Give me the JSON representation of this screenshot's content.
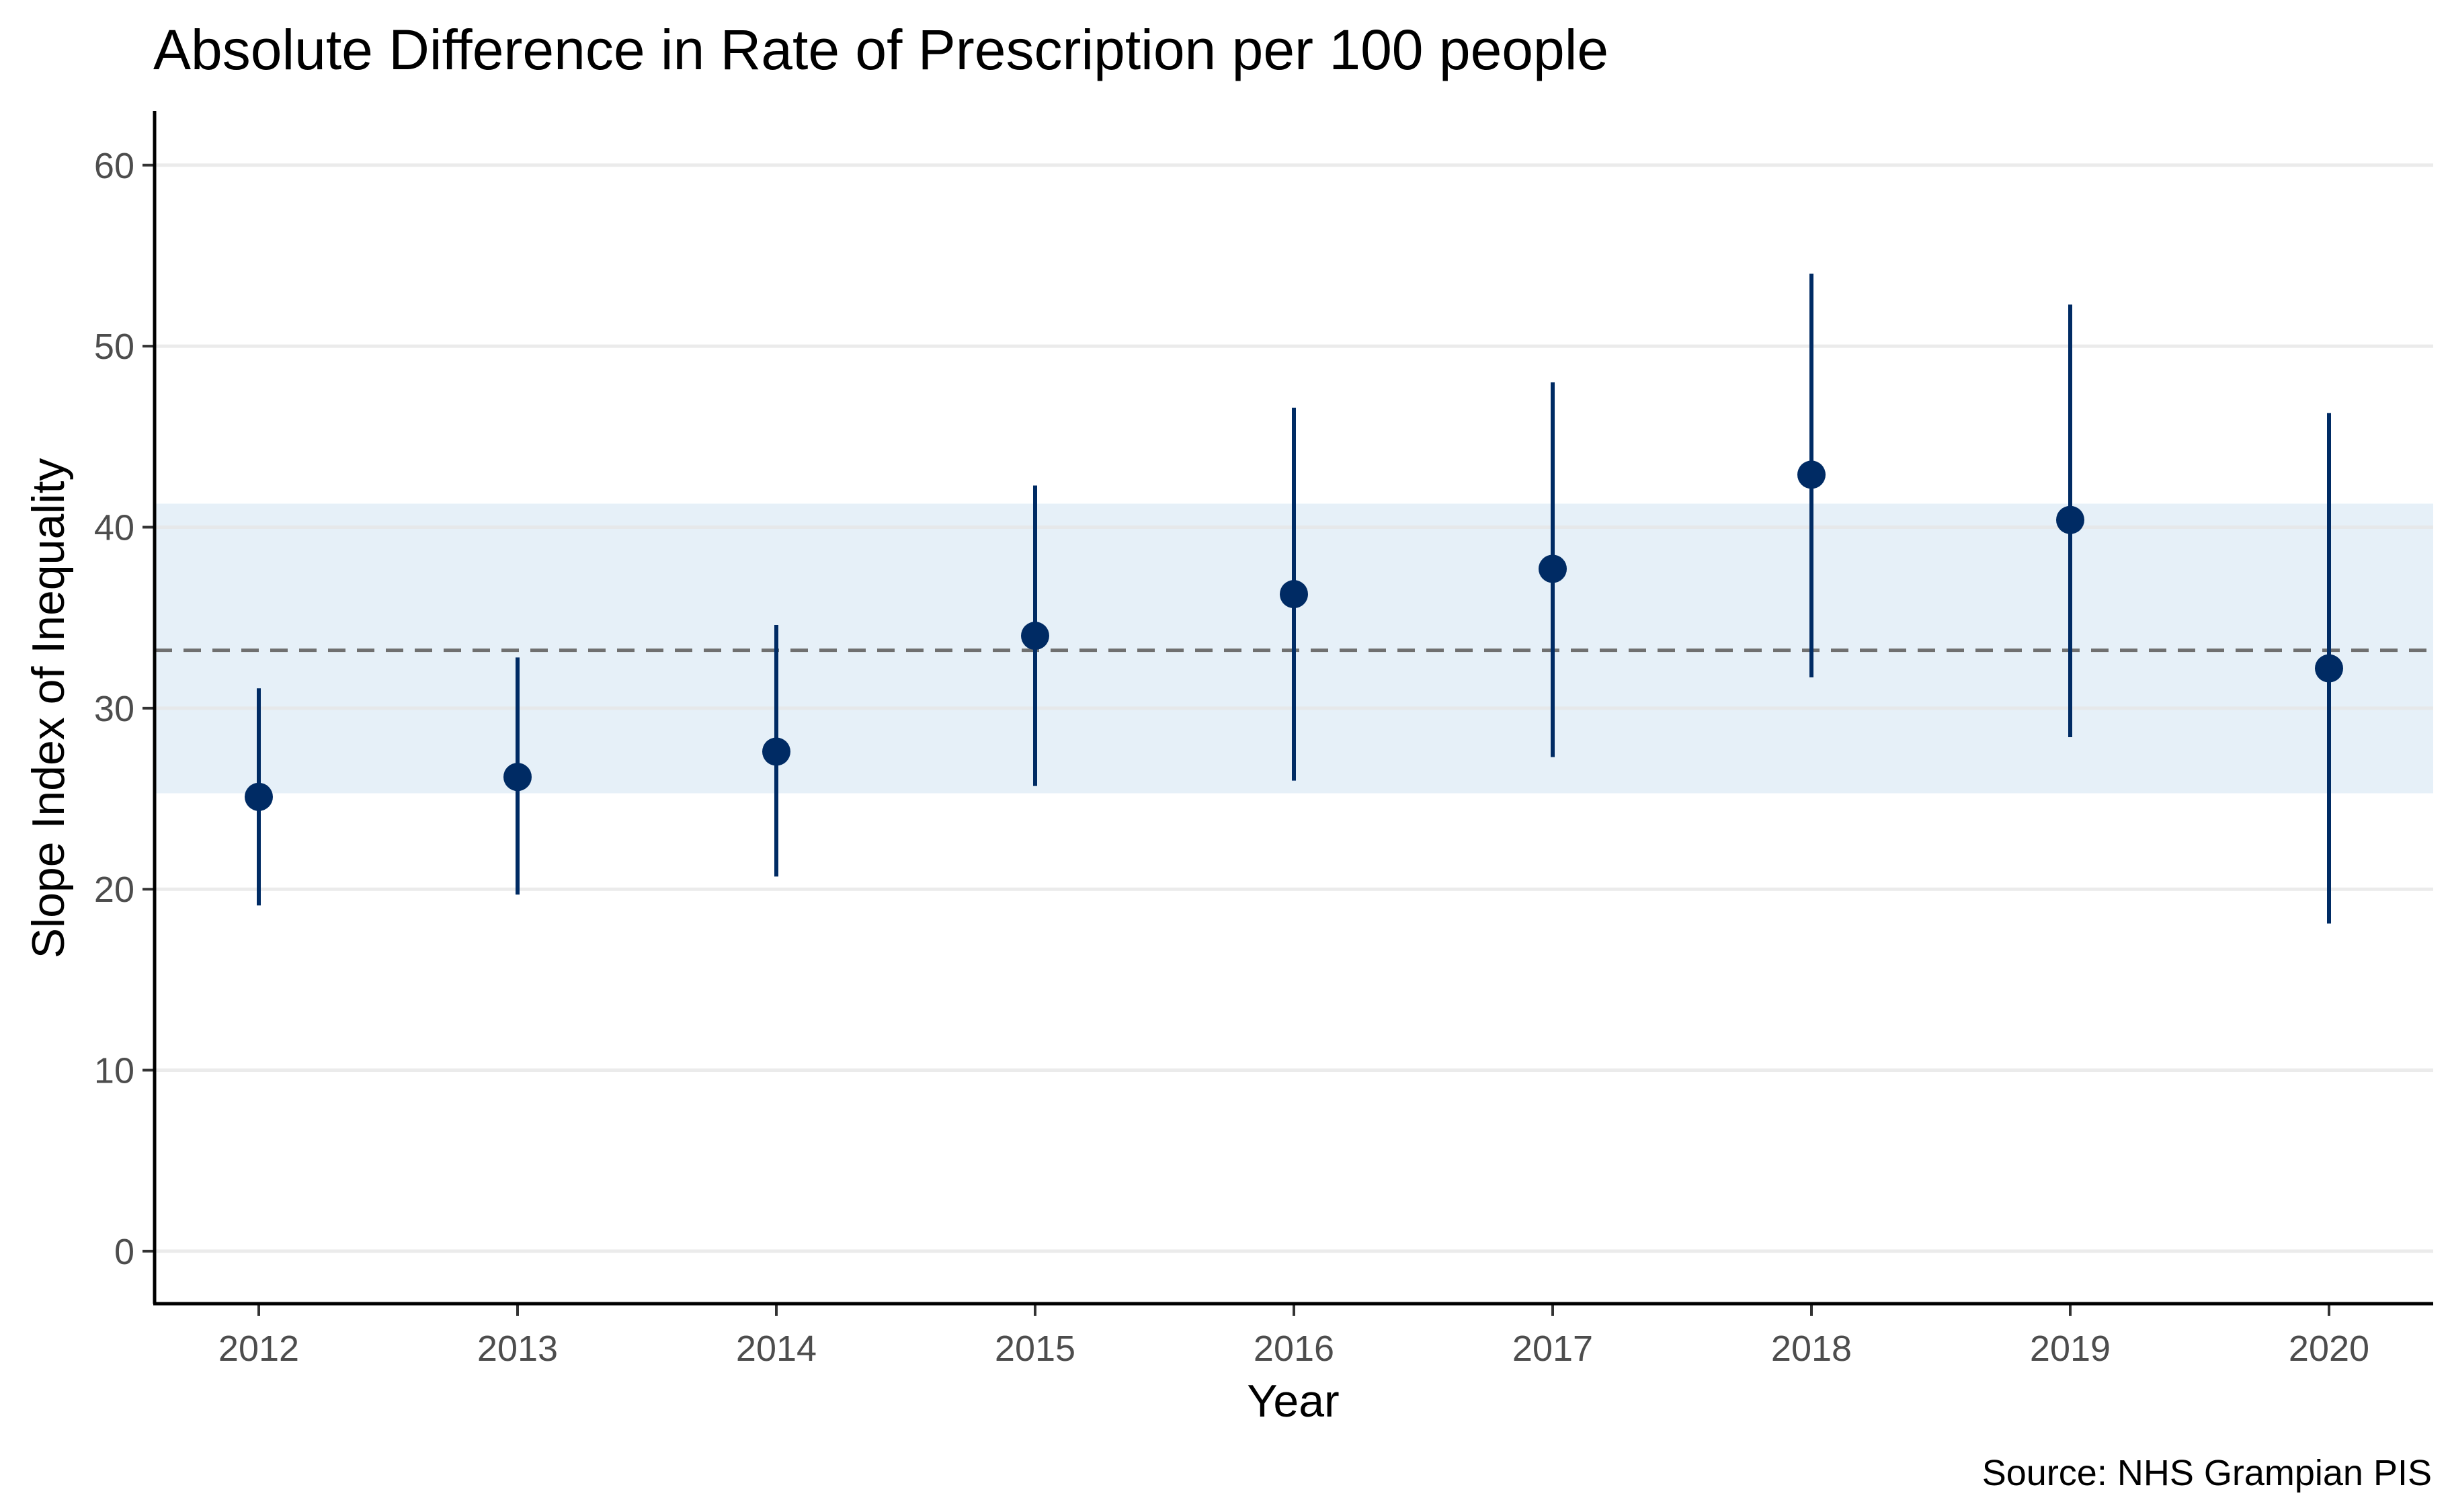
{
  "chart_data": {
    "type": "scatter",
    "title": "Absolute Difference in Rate of Prescription per 100 people",
    "xlabel": "Year",
    "ylabel": "Slope Index of Inequality",
    "caption": "Source: NHS Grampian PIS",
    "categories": [
      "2012",
      "2013",
      "2014",
      "2015",
      "2016",
      "2017",
      "2018",
      "2019",
      "2020"
    ],
    "values": [
      25.1,
      26.2,
      27.6,
      34.0,
      36.3,
      37.7,
      42.9,
      40.4,
      32.2
    ],
    "error_low": [
      19.1,
      19.7,
      20.7,
      25.7,
      26.0,
      27.3,
      31.7,
      28.4,
      18.1
    ],
    "error_high": [
      31.1,
      32.8,
      34.6,
      42.3,
      46.6,
      48.0,
      54.0,
      52.3,
      46.3
    ],
    "reference_line": 33.2,
    "reference_band": [
      25.3,
      41.3
    ],
    "ylim": [
      -2.9,
      63
    ],
    "yticks": [
      0,
      10,
      20,
      30,
      40,
      50,
      60
    ],
    "grid": "horizontal",
    "colors": {
      "point": "#002b64",
      "errorbar": "#002b64",
      "band": "#e6f0f8",
      "reference": "#707070",
      "gridline": "#e6e6e6",
      "axis": "#000000"
    }
  }
}
